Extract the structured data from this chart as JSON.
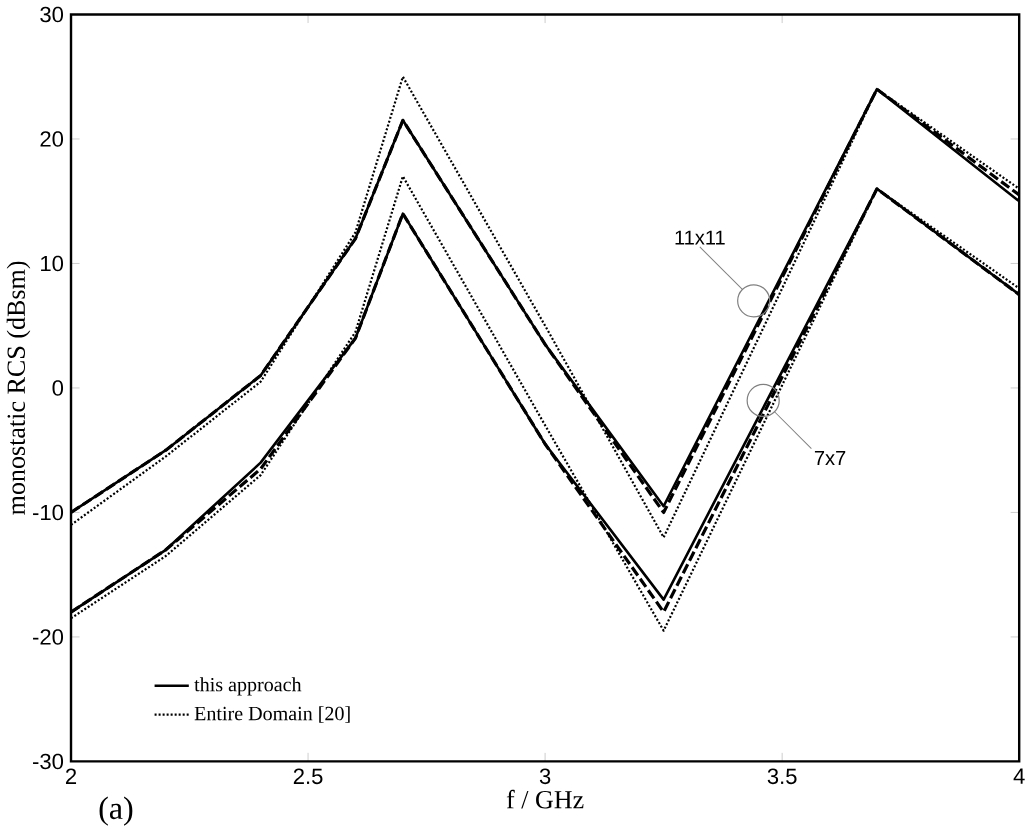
{
  "chart_data": {
    "type": "line",
    "xlabel": "f / GHz",
    "ylabel": "monostatic RCS (dBsm)",
    "x": [
      2,
      2.2,
      2.4,
      2.6,
      2.7,
      3.0,
      3.25,
      3.7,
      4.0
    ],
    "xlim": [
      2,
      4
    ],
    "ylim": [
      -30,
      30
    ],
    "xticks": [
      2,
      2.5,
      3,
      3.5,
      4
    ],
    "yticks": [
      -30,
      -20,
      -10,
      0,
      10,
      20,
      30
    ],
    "series": [
      {
        "name": "this approach",
        "color": "#000000",
        "line_style": "solid",
        "values": [
          -10,
          -5,
          1,
          12,
          21.5,
          3.5,
          -9.5,
          24,
          15
        ]
      },
      {
        "color": "#000000",
        "line_style": "solid",
        "values": [
          -18,
          -13,
          -6,
          4,
          14,
          -4.5,
          -17,
          16,
          7.5
        ]
      },
      {
        "color": "#000000",
        "line_style": "dashed",
        "values": [
          -10,
          -5,
          1,
          12,
          21.5,
          3.5,
          -10,
          24,
          15.5
        ]
      },
      {
        "color": "#000000",
        "line_style": "dashed",
        "values": [
          -18,
          -13,
          -6.5,
          4,
          14,
          -4.5,
          -18,
          16,
          7.5
        ]
      },
      {
        "name": "Entire Domain [20]",
        "color": "#000000",
        "line_style": "dotted",
        "values": [
          -11,
          -5.5,
          0.5,
          12.5,
          25,
          5,
          -12,
          24,
          16
        ]
      },
      {
        "color": "#000000",
        "line_style": "dotted",
        "values": [
          -18.5,
          -13.5,
          -7,
          4.5,
          17,
          -3,
          -19.5,
          16,
          8
        ]
      }
    ],
    "annotations": [
      {
        "text": "11x11",
        "x": 3.44,
        "y": 7
      },
      {
        "text": "7x7",
        "x": 3.46,
        "y": -1
      },
      "(a)"
    ],
    "legend": "bottom left"
  }
}
